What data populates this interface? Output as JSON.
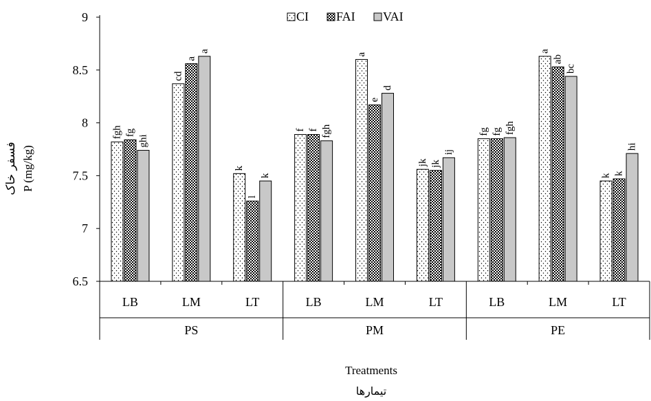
{
  "chart_data": {
    "type": "bar",
    "ylabel_fa": "فسفر خاک",
    "ylabel": "P (mg/kg)",
    "xlabel": "Treatments",
    "xlabel_fa": "تیمارها",
    "ylim": [
      6.5,
      9
    ],
    "yticks": [
      "6.5",
      "7",
      "7.5",
      "8",
      "8.5",
      "9"
    ],
    "grid": false,
    "legend_position": "top-center",
    "groups": [
      "PS",
      "PM",
      "PE"
    ],
    "subgroups": [
      "LB",
      "LM",
      "LT"
    ],
    "categories": [
      "PS-LB",
      "PS-LM",
      "PS-LT",
      "PM-LB",
      "PM-LM",
      "PM-LT",
      "PE-LB",
      "PE-LM",
      "PE-LT"
    ],
    "series": [
      {
        "name": "CI",
        "pattern": "dots",
        "values": [
          7.82,
          8.37,
          7.52,
          7.89,
          8.6,
          7.56,
          7.85,
          8.63,
          7.45
        ],
        "letters": [
          "fgh",
          "cd",
          "k",
          "f",
          "a",
          "jk",
          "fg",
          "a",
          "k"
        ]
      },
      {
        "name": "FAI",
        "pattern": "checker",
        "values": [
          7.84,
          8.56,
          7.26,
          7.89,
          8.17,
          7.55,
          7.85,
          8.53,
          7.47
        ],
        "letters": [
          "fg",
          "a",
          "l",
          "f",
          "e",
          "jk",
          "fg",
          "ab",
          "k"
        ]
      },
      {
        "name": "VAI",
        "pattern": "gray",
        "color": "#c8c8c8",
        "values": [
          7.74,
          8.63,
          7.45,
          7.83,
          8.28,
          7.67,
          7.86,
          8.44,
          7.71
        ],
        "letters": [
          "ghi",
          "a",
          "k",
          "fgh",
          "d",
          "ij",
          "fgh",
          "bc",
          "hi"
        ]
      }
    ]
  }
}
